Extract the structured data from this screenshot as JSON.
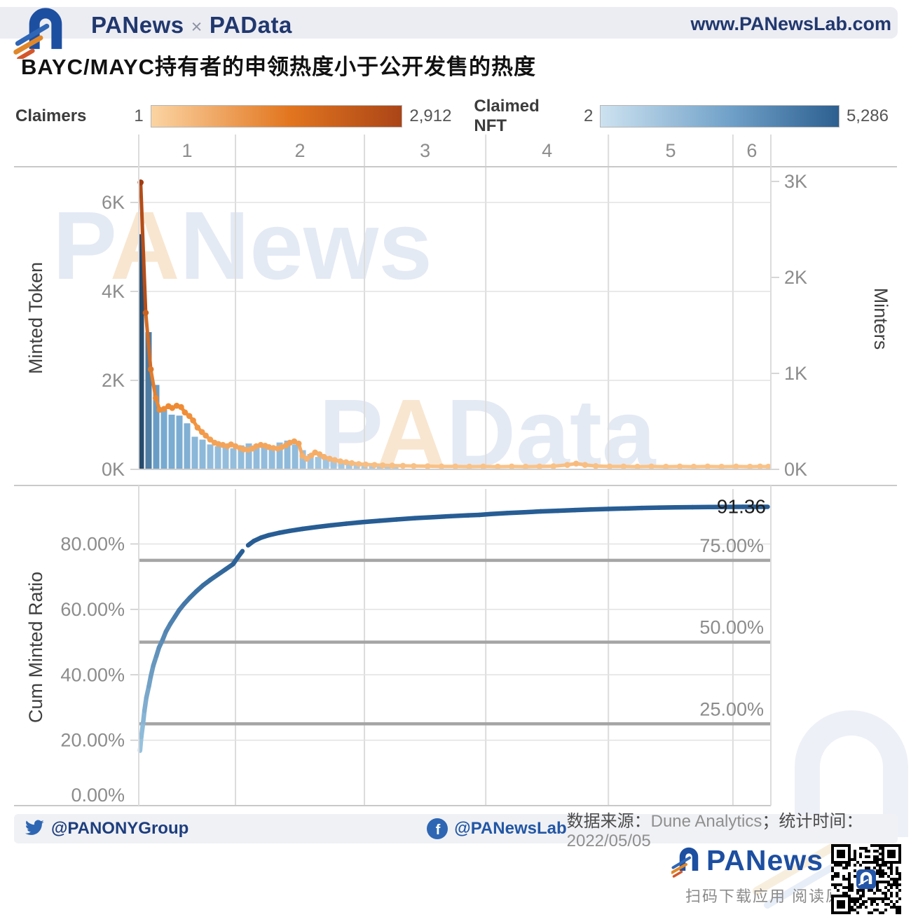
{
  "header": {
    "brand_primary": "PANews",
    "brand_separator": "×",
    "brand_secondary": "PAData",
    "site_url": "www.PANewsLab.com"
  },
  "title": "BAYC/MAYC持有者的申领热度小于公开发售的热度",
  "legend": {
    "claimers": {
      "label": "Claimers",
      "min": "1",
      "max": "2,912"
    },
    "claimed_nft": {
      "label": "Claimed NFT",
      "min": "2",
      "max": "5,286"
    }
  },
  "watermarks": {
    "top": "PANews",
    "middle": "PAData"
  },
  "palette": {
    "line_ramp": [
      "#fcd5a5",
      "#ef8b33",
      "#a33c12"
    ],
    "bar_ramp": [
      "#b7d4ea",
      "#6fa4cd",
      "#274b6d"
    ],
    "cum_ramp": [
      "#9cc7e2",
      "#275d94"
    ],
    "grid": "#dcdcdc",
    "panel_border": "#c9c9c9",
    "ref_line": "#a5a5a5",
    "tick_text": "#8c8c8c",
    "axis_title": "#3f3f3f",
    "value_label": "#1c1c1c",
    "watermark_text": "#e4eaf4",
    "watermark_accent": "#f8e6d0",
    "brand_blue": "#1d4fa1"
  },
  "chart_data": [
    {
      "type": "bar+line",
      "x_axis": {
        "band_labels": [
          "1",
          "2",
          "3",
          "4",
          "5",
          "6"
        ],
        "band_bounds_frac": [
          0,
          0.153,
          0.357,
          0.549,
          0.743,
          0.94,
          1
        ]
      },
      "left_axis": {
        "title": "Minted Token",
        "max": 6900,
        "ticks": [
          {
            "label": "0K",
            "value": 0
          },
          {
            "label": "2K",
            "value": 2000
          },
          {
            "label": "4K",
            "value": 4000
          },
          {
            "label": "6K",
            "value": 6000
          }
        ]
      },
      "right_axis": {
        "title": "Minters",
        "max": 3150,
        "ticks": [
          {
            "label": "0K",
            "value": 0
          },
          {
            "label": "1K",
            "value": 1000
          },
          {
            "label": "2K",
            "value": 2000
          },
          {
            "label": "3K",
            "value": 3000
          }
        ]
      },
      "bars": {
        "name": "Minters",
        "axis": "right",
        "x_start_frac": 0.0033,
        "x_step_frac": 0.0122,
        "values": [
          2450,
          1430,
          880,
          620,
          570,
          560,
          480,
          340,
          310,
          260,
          240,
          230,
          220,
          250,
          270,
          260,
          240,
          240,
          280,
          300,
          260,
          200,
          160,
          130,
          120,
          100,
          90,
          80,
          70,
          70,
          60,
          60,
          50,
          50
        ]
      },
      "line": {
        "name": "Claimers",
        "axis": "left",
        "points": [
          [
            0.003,
            6450
          ],
          [
            0.011,
            3520
          ],
          [
            0.019,
            2250
          ],
          [
            0.027,
            1600
          ],
          [
            0.033,
            1340
          ],
          [
            0.04,
            1360
          ],
          [
            0.047,
            1420
          ],
          [
            0.053,
            1380
          ],
          [
            0.06,
            1430
          ],
          [
            0.067,
            1400
          ],
          [
            0.073,
            1280
          ],
          [
            0.08,
            1200
          ],
          [
            0.086,
            1100
          ],
          [
            0.093,
            940
          ],
          [
            0.1,
            840
          ],
          [
            0.106,
            760
          ],
          [
            0.113,
            670
          ],
          [
            0.12,
            600
          ],
          [
            0.126,
            570
          ],
          [
            0.133,
            550
          ],
          [
            0.14,
            520
          ],
          [
            0.146,
            560
          ],
          [
            0.153,
            520
          ],
          [
            0.16,
            480
          ],
          [
            0.166,
            450
          ],
          [
            0.173,
            440
          ],
          [
            0.18,
            470
          ],
          [
            0.186,
            520
          ],
          [
            0.193,
            550
          ],
          [
            0.2,
            530
          ],
          [
            0.206,
            500
          ],
          [
            0.213,
            480
          ],
          [
            0.22,
            470
          ],
          [
            0.226,
            500
          ],
          [
            0.233,
            540
          ],
          [
            0.239,
            600
          ],
          [
            0.246,
            630
          ],
          [
            0.253,
            580
          ],
          [
            0.259,
            300
          ],
          [
            0.266,
            240
          ],
          [
            0.273,
            310
          ],
          [
            0.279,
            380
          ],
          [
            0.286,
            340
          ],
          [
            0.293,
            280
          ],
          [
            0.302,
            240
          ],
          [
            0.31,
            210
          ],
          [
            0.319,
            180
          ],
          [
            0.328,
            160
          ],
          [
            0.337,
            140
          ],
          [
            0.348,
            120
          ],
          [
            0.359,
            110
          ],
          [
            0.373,
            100
          ],
          [
            0.386,
            90
          ],
          [
            0.401,
            85
          ],
          [
            0.418,
            80
          ],
          [
            0.435,
            75
          ],
          [
            0.457,
            70
          ],
          [
            0.479,
            65
          ],
          [
            0.501,
            65
          ],
          [
            0.523,
            60
          ],
          [
            0.545,
            65
          ],
          [
            0.568,
            60
          ],
          [
            0.59,
            65
          ],
          [
            0.612,
            60
          ],
          [
            0.634,
            65
          ],
          [
            0.656,
            70
          ],
          [
            0.678,
            100
          ],
          [
            0.692,
            130
          ],
          [
            0.706,
            100
          ],
          [
            0.723,
            75
          ],
          [
            0.745,
            65
          ],
          [
            0.767,
            65
          ],
          [
            0.789,
            60
          ],
          [
            0.811,
            65
          ],
          [
            0.834,
            60
          ],
          [
            0.856,
            65
          ],
          [
            0.878,
            60
          ],
          [
            0.9,
            65
          ],
          [
            0.922,
            60
          ],
          [
            0.945,
            65
          ],
          [
            0.967,
            60
          ],
          [
            0.983,
            65
          ],
          [
            0.996,
            60
          ]
        ]
      }
    },
    {
      "type": "line",
      "y_axis": {
        "title": "Cum Minted Ratio",
        "max": 96.5,
        "ticks": [
          {
            "label": "0.00%",
            "value": 0
          },
          {
            "label": "20.00%",
            "value": 20
          },
          {
            "label": "40.00%",
            "value": 40
          },
          {
            "label": "60.00%",
            "value": 60
          },
          {
            "label": "80.00%",
            "value": 80
          }
        ]
      },
      "ref_lines": [
        {
          "label": "75.00%",
          "value": 75
        },
        {
          "label": "50.00%",
          "value": 50
        },
        {
          "label": "25.00%",
          "value": 25
        }
      ],
      "series": {
        "name": "Cum Minted Ratio",
        "end_label": "91.36",
        "gap_after_index": 24,
        "points": [
          [
            0.002,
            16.8
          ],
          [
            0.004,
            21
          ],
          [
            0.007,
            25.5
          ],
          [
            0.009,
            29
          ],
          [
            0.012,
            33
          ],
          [
            0.016,
            36.5
          ],
          [
            0.019,
            39.5
          ],
          [
            0.023,
            42.8
          ],
          [
            0.028,
            45.8
          ],
          [
            0.032,
            48.3
          ],
          [
            0.038,
            50.8
          ],
          [
            0.043,
            53.2
          ],
          [
            0.05,
            55.6
          ],
          [
            0.057,
            57.7
          ],
          [
            0.064,
            59.8
          ],
          [
            0.072,
            61.7
          ],
          [
            0.081,
            63.6
          ],
          [
            0.091,
            65.5
          ],
          [
            0.102,
            67.4
          ],
          [
            0.113,
            69
          ],
          [
            0.125,
            70.6
          ],
          [
            0.137,
            72.2
          ],
          [
            0.149,
            73.8
          ],
          [
            0.157,
            76
          ],
          [
            0.164,
            77.8
          ],
          [
            0.173,
            79.6
          ],
          [
            0.182,
            80.9
          ],
          [
            0.193,
            81.9
          ],
          [
            0.206,
            82.7
          ],
          [
            0.222,
            83.4
          ],
          [
            0.239,
            84
          ],
          [
            0.259,
            84.6
          ],
          [
            0.282,
            85.2
          ],
          [
            0.304,
            85.7
          ],
          [
            0.328,
            86.2
          ],
          [
            0.355,
            86.7
          ],
          [
            0.381,
            87.1
          ],
          [
            0.408,
            87.5
          ],
          [
            0.437,
            87.9
          ],
          [
            0.466,
            88.2
          ],
          [
            0.494,
            88.5
          ],
          [
            0.521,
            88.75
          ],
          [
            0.539,
            88.9
          ],
          [
            0.557,
            89.15
          ],
          [
            0.583,
            89.45
          ],
          [
            0.61,
            89.7
          ],
          [
            0.636,
            89.95
          ],
          [
            0.663,
            90.15
          ],
          [
            0.69,
            90.35
          ],
          [
            0.716,
            90.55
          ],
          [
            0.743,
            90.7
          ],
          [
            0.77,
            90.85
          ],
          [
            0.796,
            91
          ],
          [
            0.823,
            91.1
          ],
          [
            0.849,
            91.18
          ],
          [
            0.876,
            91.25
          ],
          [
            0.903,
            91.3
          ],
          [
            0.929,
            91.33
          ],
          [
            0.956,
            91.35
          ],
          [
            0.995,
            91.36
          ]
        ]
      }
    }
  ],
  "footer": {
    "twitter_handle": "@PANONYGroup",
    "facebook_handle": "@PANewsLab",
    "source_label": "数据来源：",
    "source_value": "Dune Analytics",
    "separator": "；",
    "time_label": "统计时间：",
    "time_value": "2022/05/05",
    "fb_letter": "f"
  },
  "promo": {
    "brand": "PANews",
    "caption": "扫码下载应用 阅读原文"
  }
}
